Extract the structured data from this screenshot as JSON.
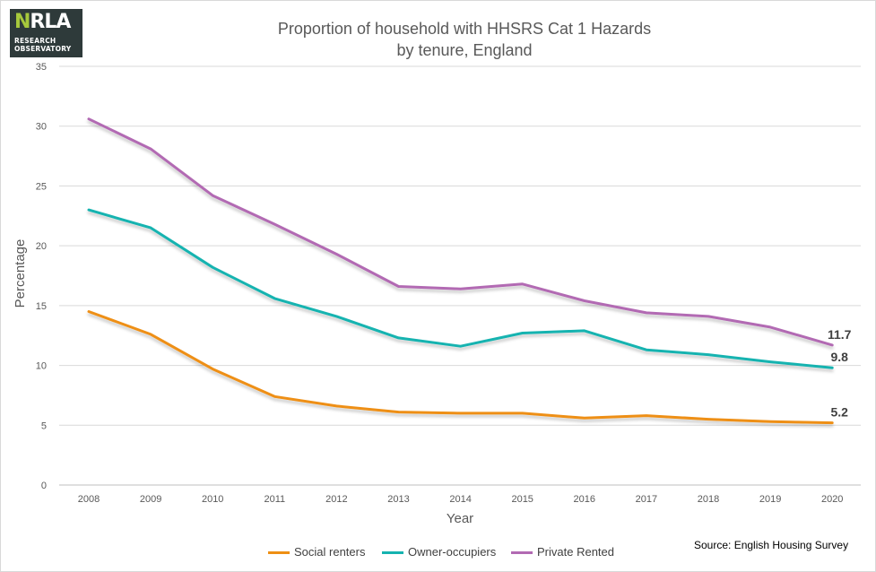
{
  "logo": {
    "mark": "NRLA",
    "line1": "RESEARCH",
    "line2": "OBSERVATORY"
  },
  "chart_data": {
    "type": "line",
    "title": "Proportion of household with HHSRS Cat 1 Hazards",
    "subtitle": "by tenure, England",
    "xlabel": "Year",
    "ylabel": "Percentage",
    "ylim": [
      0,
      35
    ],
    "yticks": [
      0,
      5,
      10,
      15,
      20,
      25,
      30,
      35
    ],
    "grid": true,
    "legend_position": "bottom",
    "categories": [
      "2008",
      "2009",
      "2010",
      "2011",
      "2012",
      "2013",
      "2014",
      "2015",
      "2016",
      "2017",
      "2018",
      "2019",
      "2020"
    ],
    "series": [
      {
        "name": "Social renters",
        "color": "#ee8f13",
        "values": [
          14.5,
          12.6,
          9.7,
          7.4,
          6.6,
          6.1,
          6.0,
          6.0,
          5.6,
          5.8,
          5.5,
          5.3,
          5.2
        ],
        "end_label": "5.2"
      },
      {
        "name": "Owner-occupiers",
        "color": "#15b3b0",
        "values": [
          23.0,
          21.5,
          18.2,
          15.6,
          14.1,
          12.3,
          11.6,
          12.7,
          12.9,
          11.3,
          10.9,
          10.3,
          9.8
        ],
        "end_label": "9.8"
      },
      {
        "name": "Private Rented",
        "color": "#b26ab3",
        "values": [
          30.6,
          28.1,
          24.2,
          21.8,
          19.3,
          16.6,
          16.4,
          16.8,
          15.4,
          14.4,
          14.1,
          13.2,
          11.7
        ],
        "end_label": "11.7"
      }
    ],
    "source": "Source: English Housing Survey"
  }
}
